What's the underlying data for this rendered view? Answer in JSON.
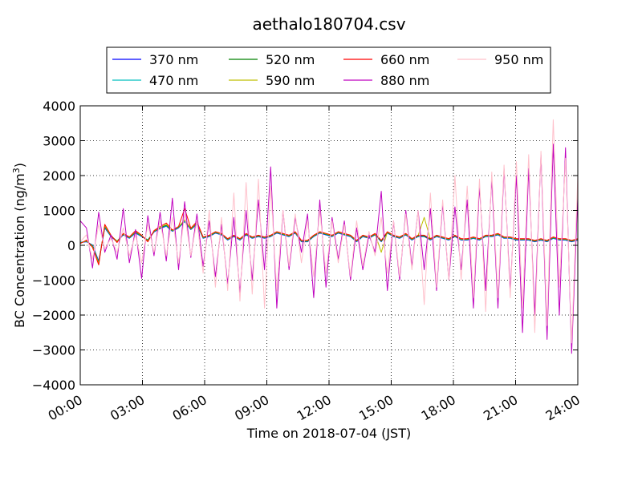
{
  "chart_data": {
    "type": "line",
    "title": "aethalo180704.csv",
    "xlabel": "Time on 2018-07-04 (JST)",
    "ylabel": "BC Concentration (ng/m³)",
    "ylabel_main": "BC Concentration (ng/m",
    "ylabel_sup": "3",
    "ylabel_end": ")",
    "xlim": [
      "00:00",
      "24:00"
    ],
    "ylim": [
      -4000,
      4000
    ],
    "x_ticks": [
      "00:00",
      "03:00",
      "06:00",
      "09:00",
      "12:00",
      "15:00",
      "18:00",
      "21:00",
      "24:00"
    ],
    "y_ticks": [
      "4000",
      "3000",
      "2000",
      "1000",
      "0",
      "−1000",
      "−2000",
      "−3000",
      "−4000"
    ],
    "grid": true,
    "legend_position": "top",
    "series": [
      {
        "name": "370 nm",
        "color": "#0000ff",
        "values": [
          80,
          100,
          10,
          -450,
          500,
          250,
          100,
          300,
          200,
          350,
          250,
          150,
          380,
          480,
          550,
          400,
          500,
          680,
          450,
          600,
          200,
          250,
          350,
          300,
          150,
          250,
          150,
          300,
          200,
          250,
          200,
          250,
          350,
          300,
          250,
          350,
          100,
          100,
          250,
          350,
          300,
          250,
          350,
          300,
          250,
          100,
          250,
          200,
          300,
          100,
          350,
          250,
          200,
          300,
          150,
          250,
          250,
          150,
          250,
          200,
          150,
          250,
          150,
          150,
          200,
          150,
          250,
          250,
          300,
          200,
          200,
          150,
          150,
          150,
          100,
          150,
          100,
          200,
          150,
          150,
          100,
          150
        ]
      },
      {
        "name": "470 nm",
        "color": "#00bfbf",
        "values": [
          90,
          110,
          0,
          -480,
          520,
          260,
          110,
          310,
          210,
          360,
          260,
          160,
          390,
          490,
          560,
          410,
          510,
          690,
          460,
          610,
          210,
          260,
          360,
          310,
          160,
          260,
          160,
          310,
          210,
          260,
          210,
          260,
          360,
          310,
          260,
          360,
          110,
          110,
          260,
          360,
          310,
          260,
          360,
          310,
          260,
          110,
          260,
          210,
          310,
          110,
          360,
          260,
          210,
          310,
          160,
          260,
          260,
          160,
          260,
          210,
          160,
          260,
          160,
          160,
          210,
          160,
          260,
          260,
          310,
          210,
          210,
          160,
          160,
          160,
          110,
          160,
          110,
          210,
          160,
          160,
          110,
          160
        ]
      },
      {
        "name": "520 nm",
        "color": "#008000",
        "values": [
          70,
          120,
          -20,
          -500,
          540,
          270,
          120,
          320,
          220,
          380,
          270,
          140,
          400,
          500,
          580,
          420,
          520,
          710,
          470,
          630,
          220,
          270,
          370,
          320,
          170,
          270,
          170,
          320,
          220,
          270,
          220,
          270,
          370,
          320,
          270,
          370,
          120,
          120,
          270,
          370,
          320,
          270,
          370,
          320,
          270,
          120,
          270,
          220,
          320,
          120,
          370,
          270,
          220,
          320,
          170,
          270,
          270,
          170,
          270,
          220,
          170,
          270,
          170,
          170,
          220,
          170,
          270,
          270,
          320,
          220,
          220,
          170,
          170,
          170,
          120,
          170,
          120,
          220,
          170,
          170,
          120,
          170
        ]
      },
      {
        "name": "590 nm",
        "color": "#bfbf00",
        "values": [
          60,
          130,
          -40,
          -520,
          560,
          280,
          100,
          330,
          230,
          400,
          280,
          120,
          410,
          520,
          600,
          430,
          530,
          730,
          480,
          650,
          230,
          280,
          380,
          330,
          180,
          280,
          180,
          330,
          230,
          280,
          230,
          280,
          380,
          330,
          280,
          380,
          130,
          130,
          280,
          380,
          330,
          280,
          380,
          330,
          280,
          130,
          280,
          230,
          330,
          -200,
          380,
          280,
          230,
          330,
          180,
          280,
          800,
          180,
          280,
          230,
          180,
          280,
          180,
          180,
          230,
          180,
          280,
          280,
          330,
          230,
          230,
          180,
          180,
          180,
          130,
          180,
          130,
          230,
          180,
          180,
          130,
          180
        ]
      },
      {
        "name": "660 nm",
        "color": "#ff0000",
        "values": [
          50,
          150,
          -60,
          -560,
          600,
          290,
          80,
          340,
          240,
          420,
          290,
          100,
          420,
          540,
          640,
          440,
          540,
          1050,
          490,
          680,
          240,
          290,
          390,
          340,
          190,
          290,
          190,
          340,
          240,
          290,
          240,
          290,
          390,
          340,
          290,
          390,
          140,
          140,
          290,
          390,
          340,
          290,
          390,
          340,
          290,
          140,
          290,
          240,
          340,
          140,
          390,
          290,
          240,
          340,
          190,
          290,
          290,
          190,
          290,
          240,
          190,
          290,
          190,
          190,
          240,
          190,
          290,
          290,
          340,
          240,
          240,
          190,
          190,
          190,
          140,
          190,
          140,
          240,
          190,
          190,
          140,
          190
        ]
      },
      {
        "name": "880 nm",
        "color": "#bf00bf",
        "values": [
          700,
          500,
          -650,
          950,
          -200,
          300,
          -400,
          1050,
          -500,
          450,
          -950,
          850,
          -300,
          950,
          -450,
          1350,
          -700,
          1250,
          -350,
          900,
          -600,
          700,
          -900,
          600,
          -1100,
          800,
          -1350,
          1000,
          -1000,
          1300,
          -700,
          2250,
          -1800,
          1000,
          -700,
          800,
          -200,
          900,
          -1500,
          1300,
          -1200,
          800,
          -400,
          700,
          -1000,
          500,
          -700,
          300,
          -200,
          1550,
          -1300,
          700,
          -1000,
          1000,
          -600,
          1000,
          -700,
          1050,
          -1300,
          1200,
          -1000,
          1100,
          -700,
          1300,
          -1800,
          1700,
          -1300,
          1900,
          -1800,
          2200,
          -1300,
          2000,
          -2500,
          2200,
          -2000,
          2600,
          -2700,
          2900,
          -2000,
          2800,
          -3100,
          1500
        ]
      },
      {
        "name": "950 nm",
        "color": "#ffc0cb",
        "values": [
          100,
          300,
          -400,
          600,
          -100,
          200,
          -200,
          500,
          -300,
          300,
          -500,
          600,
          -200,
          700,
          -300,
          800,
          -500,
          900,
          -300,
          700,
          -800,
          1000,
          -1200,
          800,
          -1300,
          1500,
          -1600,
          1800,
          -1400,
          1900,
          -1800,
          1700,
          -1300,
          1000,
          -600,
          900,
          -500,
          700,
          -900,
          1000,
          -800,
          700,
          -500,
          600,
          -900,
          700,
          -600,
          400,
          -300,
          800,
          -800,
          700,
          -900,
          900,
          -700,
          1000,
          -1700,
          1500,
          -1200,
          1300,
          -1000,
          2000,
          -1000,
          1700,
          -1500,
          1900,
          -1900,
          2100,
          -1500,
          2300,
          -1500,
          2400,
          -1800,
          2600,
          -2500,
          2700,
          -2300,
          3600,
          -1200,
          2500,
          -2800,
          2000
        ]
      }
    ]
  }
}
